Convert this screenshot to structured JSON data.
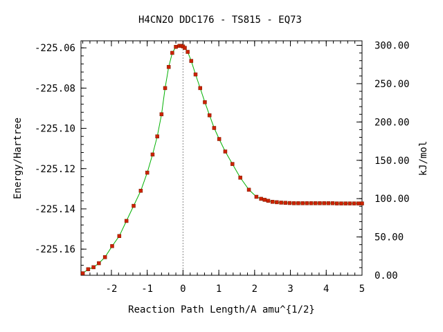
{
  "chart_data": {
    "type": "line",
    "title": "H4CN2O   DDC176 - TS815 - EQ73",
    "xlabel": "Reaction Path Length/A amu^{1/2}",
    "ylabel": "Energy/Hartree",
    "y2label": "kJ/mol",
    "xlim": [
      -2.85,
      5.0
    ],
    "ylim": [
      -225.173,
      -225.0565
    ],
    "y2lim": [
      0.0,
      305.9
    ],
    "x_ticks": [
      -2,
      -1,
      0,
      1,
      2,
      3,
      4,
      5
    ],
    "x_tick_labels": [
      "-2",
      "-1",
      "0",
      "1",
      "2",
      "3",
      "4",
      "5"
    ],
    "y_ticks": [
      -225.06,
      -225.08,
      -225.1,
      -225.12,
      -225.14,
      -225.16
    ],
    "y_tick_labels": [
      "-225.06",
      "-225.08",
      "-225.10",
      "-225.12",
      "-225.14",
      "-225.16"
    ],
    "y2_ticks": [
      300,
      250,
      200,
      150,
      100,
      50,
      0
    ],
    "y2_tick_labels": [
      "300.00",
      "250.00",
      "200.00",
      "150.00",
      "100.00",
      "50.00",
      "0.00"
    ],
    "ts_marker_x": 0.0,
    "grid": false,
    "line_color": "#00b000",
    "marker_color": "#cc2200",
    "series": [
      {
        "x": [
          -2.8,
          -2.65,
          -2.5,
          -2.35,
          -2.18,
          -1.98,
          -1.78,
          -1.58,
          -1.38,
          -1.18,
          -1.0,
          -0.85,
          -0.72,
          -0.6,
          -0.5,
          -0.4,
          -0.3,
          -0.2,
          -0.1,
          -0.05,
          0.0,
          0.05,
          0.13,
          0.23,
          0.35,
          0.48,
          0.61,
          0.74,
          0.87,
          1.01,
          1.18,
          1.38,
          1.6,
          1.84,
          2.05,
          2.18,
          2.28,
          2.38,
          2.5,
          2.62,
          2.74,
          2.86,
          2.98,
          3.1,
          3.22,
          3.34,
          3.46,
          3.58,
          3.7,
          3.82,
          3.94,
          4.06,
          4.18,
          4.3,
          4.42,
          4.54,
          4.66,
          4.78,
          4.9,
          5.0
        ],
        "y": [
          -225.172,
          -225.17,
          -225.169,
          -225.167,
          -225.164,
          -225.1585,
          -225.1535,
          -225.146,
          -225.1385,
          -225.131,
          -225.122,
          -225.113,
          -225.104,
          -225.093,
          -225.08,
          -225.0695,
          -225.0625,
          -225.0595,
          -225.059,
          -225.059,
          -225.0593,
          -225.06,
          -225.062,
          -225.0665,
          -225.0732,
          -225.08,
          -225.087,
          -225.0935,
          -225.0998,
          -225.1053,
          -225.1115,
          -225.1177,
          -225.1245,
          -225.1305,
          -225.134,
          -225.135,
          -225.1355,
          -225.136,
          -225.1365,
          -225.1367,
          -225.1369,
          -225.137,
          -225.1371,
          -225.1372,
          -225.1372,
          -225.1372,
          -225.1372,
          -225.1372,
          -225.1372,
          -225.1372,
          -225.1372,
          -225.1372,
          -225.1372,
          -225.1373,
          -225.1373,
          -225.1373,
          -225.1373,
          -225.1373,
          -225.1373,
          -225.1373
        ]
      }
    ]
  }
}
